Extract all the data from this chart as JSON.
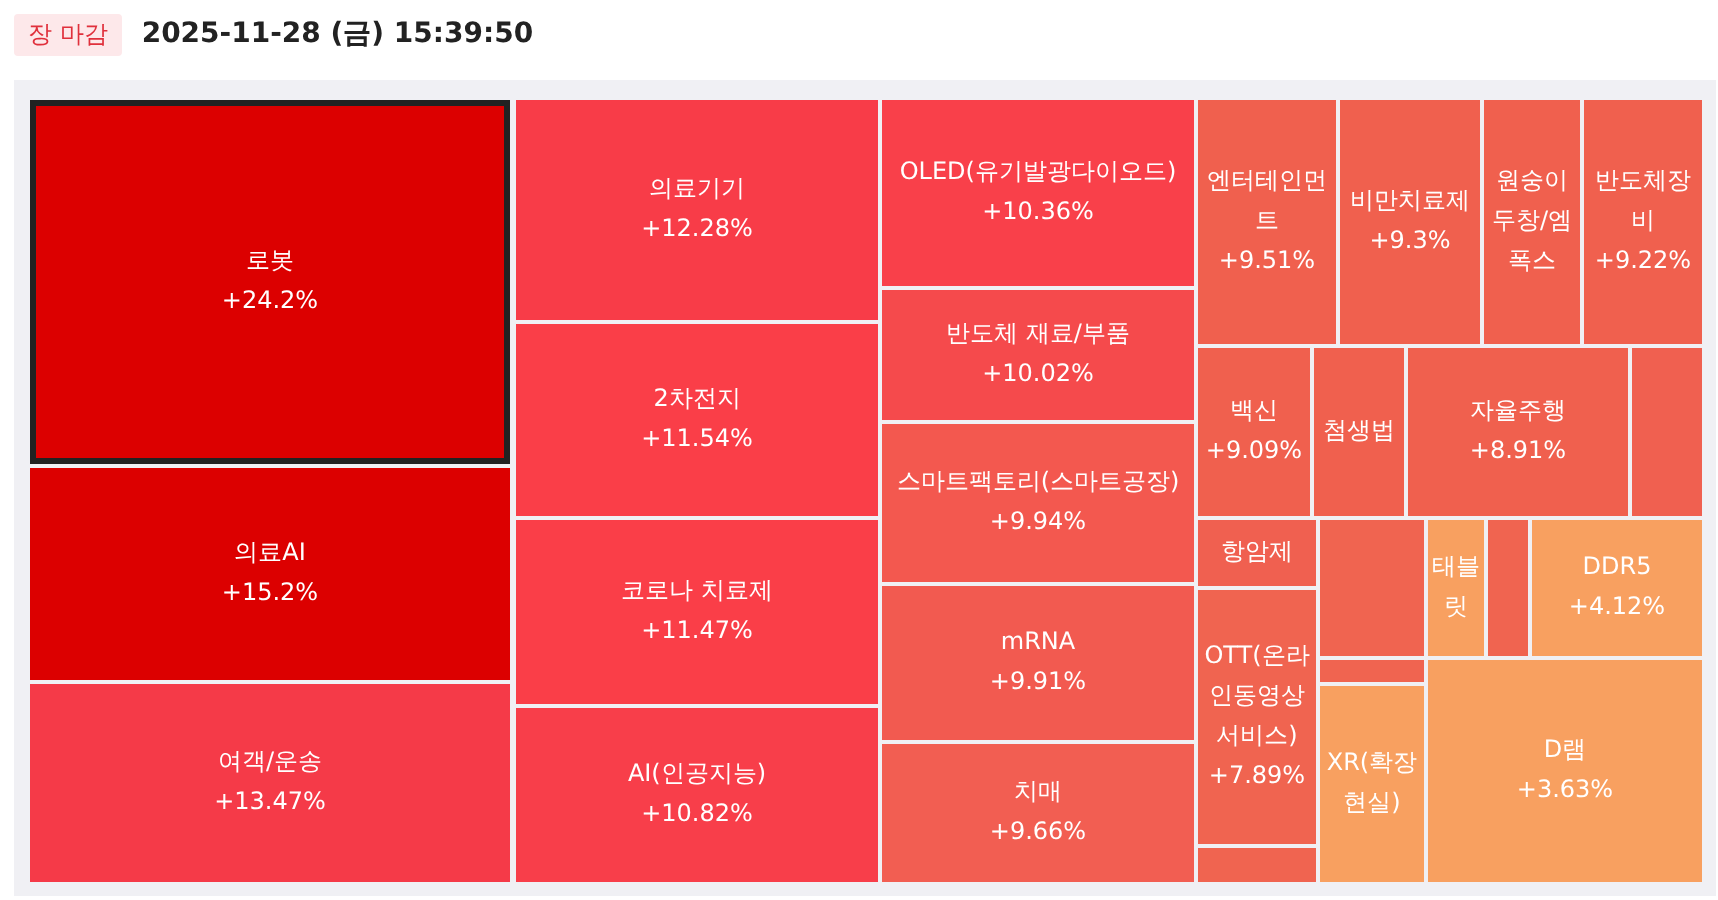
{
  "chart_data": {
    "type": "other",
    "title": "2025-11-28 (금) 15:39:50",
    "subtitle": "장 마감",
    "categories": [
      "로봇",
      "의료AI",
      "여객/운송",
      "의료기기",
      "2차전지",
      "코로나 치료제",
      "AI(인공지능)",
      "OLED(유기발광다이오드)",
      "반도체 재료/부품",
      "스마트팩토리(스마트공장)",
      "mRNA",
      "치매",
      "엔터테인먼트",
      "비만치료제",
      "원숭이두창/엠폭스",
      "반도체장비",
      "백신",
      "첨생법",
      "자율주행",
      null,
      "항암제",
      null,
      "태블릿",
      null,
      "DDR5",
      "OTT(온라인동영상서비스)",
      null,
      null,
      "XR(확장현실)",
      "D램"
    ],
    "values": [
      24.2,
      15.2,
      13.47,
      12.28,
      11.54,
      11.47,
      10.82,
      10.36,
      10.02,
      9.94,
      9.91,
      9.66,
      9.51,
      9.3,
      null,
      9.22,
      9.09,
      null,
      8.91,
      null,
      null,
      null,
      null,
      null,
      4.12,
      7.89,
      null,
      null,
      null,
      3.63
    ],
    "value_labels": [
      "+24.2%",
      "+15.2%",
      "+13.47%",
      "+12.28%",
      "+11.54%",
      "+11.47%",
      "+10.82%",
      "+10.36%",
      "+10.02%",
      "+9.94%",
      "+9.91%",
      "+9.66%",
      "+9.51%",
      "+9.3%",
      null,
      "+9.22%",
      "+9.09%",
      null,
      "+8.91%",
      null,
      null,
      null,
      null,
      null,
      "+4.12%",
      "+7.89%",
      null,
      null,
      null,
      "+3.63%"
    ],
    "colors": [
      "#dc0000",
      "#dc0000",
      "#f53a48",
      "#f83c48",
      "#fa3e48",
      "#fa3e48",
      "#f83e4a",
      "#f9404a",
      "#f54a4c",
      "#f3584f",
      "#f25a50",
      "#f25e52",
      "#f0604e",
      "#f0604e",
      "#f0604e",
      "#f0604e",
      "#f0604e",
      "#f0604e",
      "#f0604e",
      "#f06050",
      "#f06050",
      "#f06450",
      "#f8a060",
      "#f06450",
      "#f8a060",
      "#f06450",
      "#f06450",
      "#f06450",
      "#f8a060",
      "#f8a060"
    ]
  }
}
